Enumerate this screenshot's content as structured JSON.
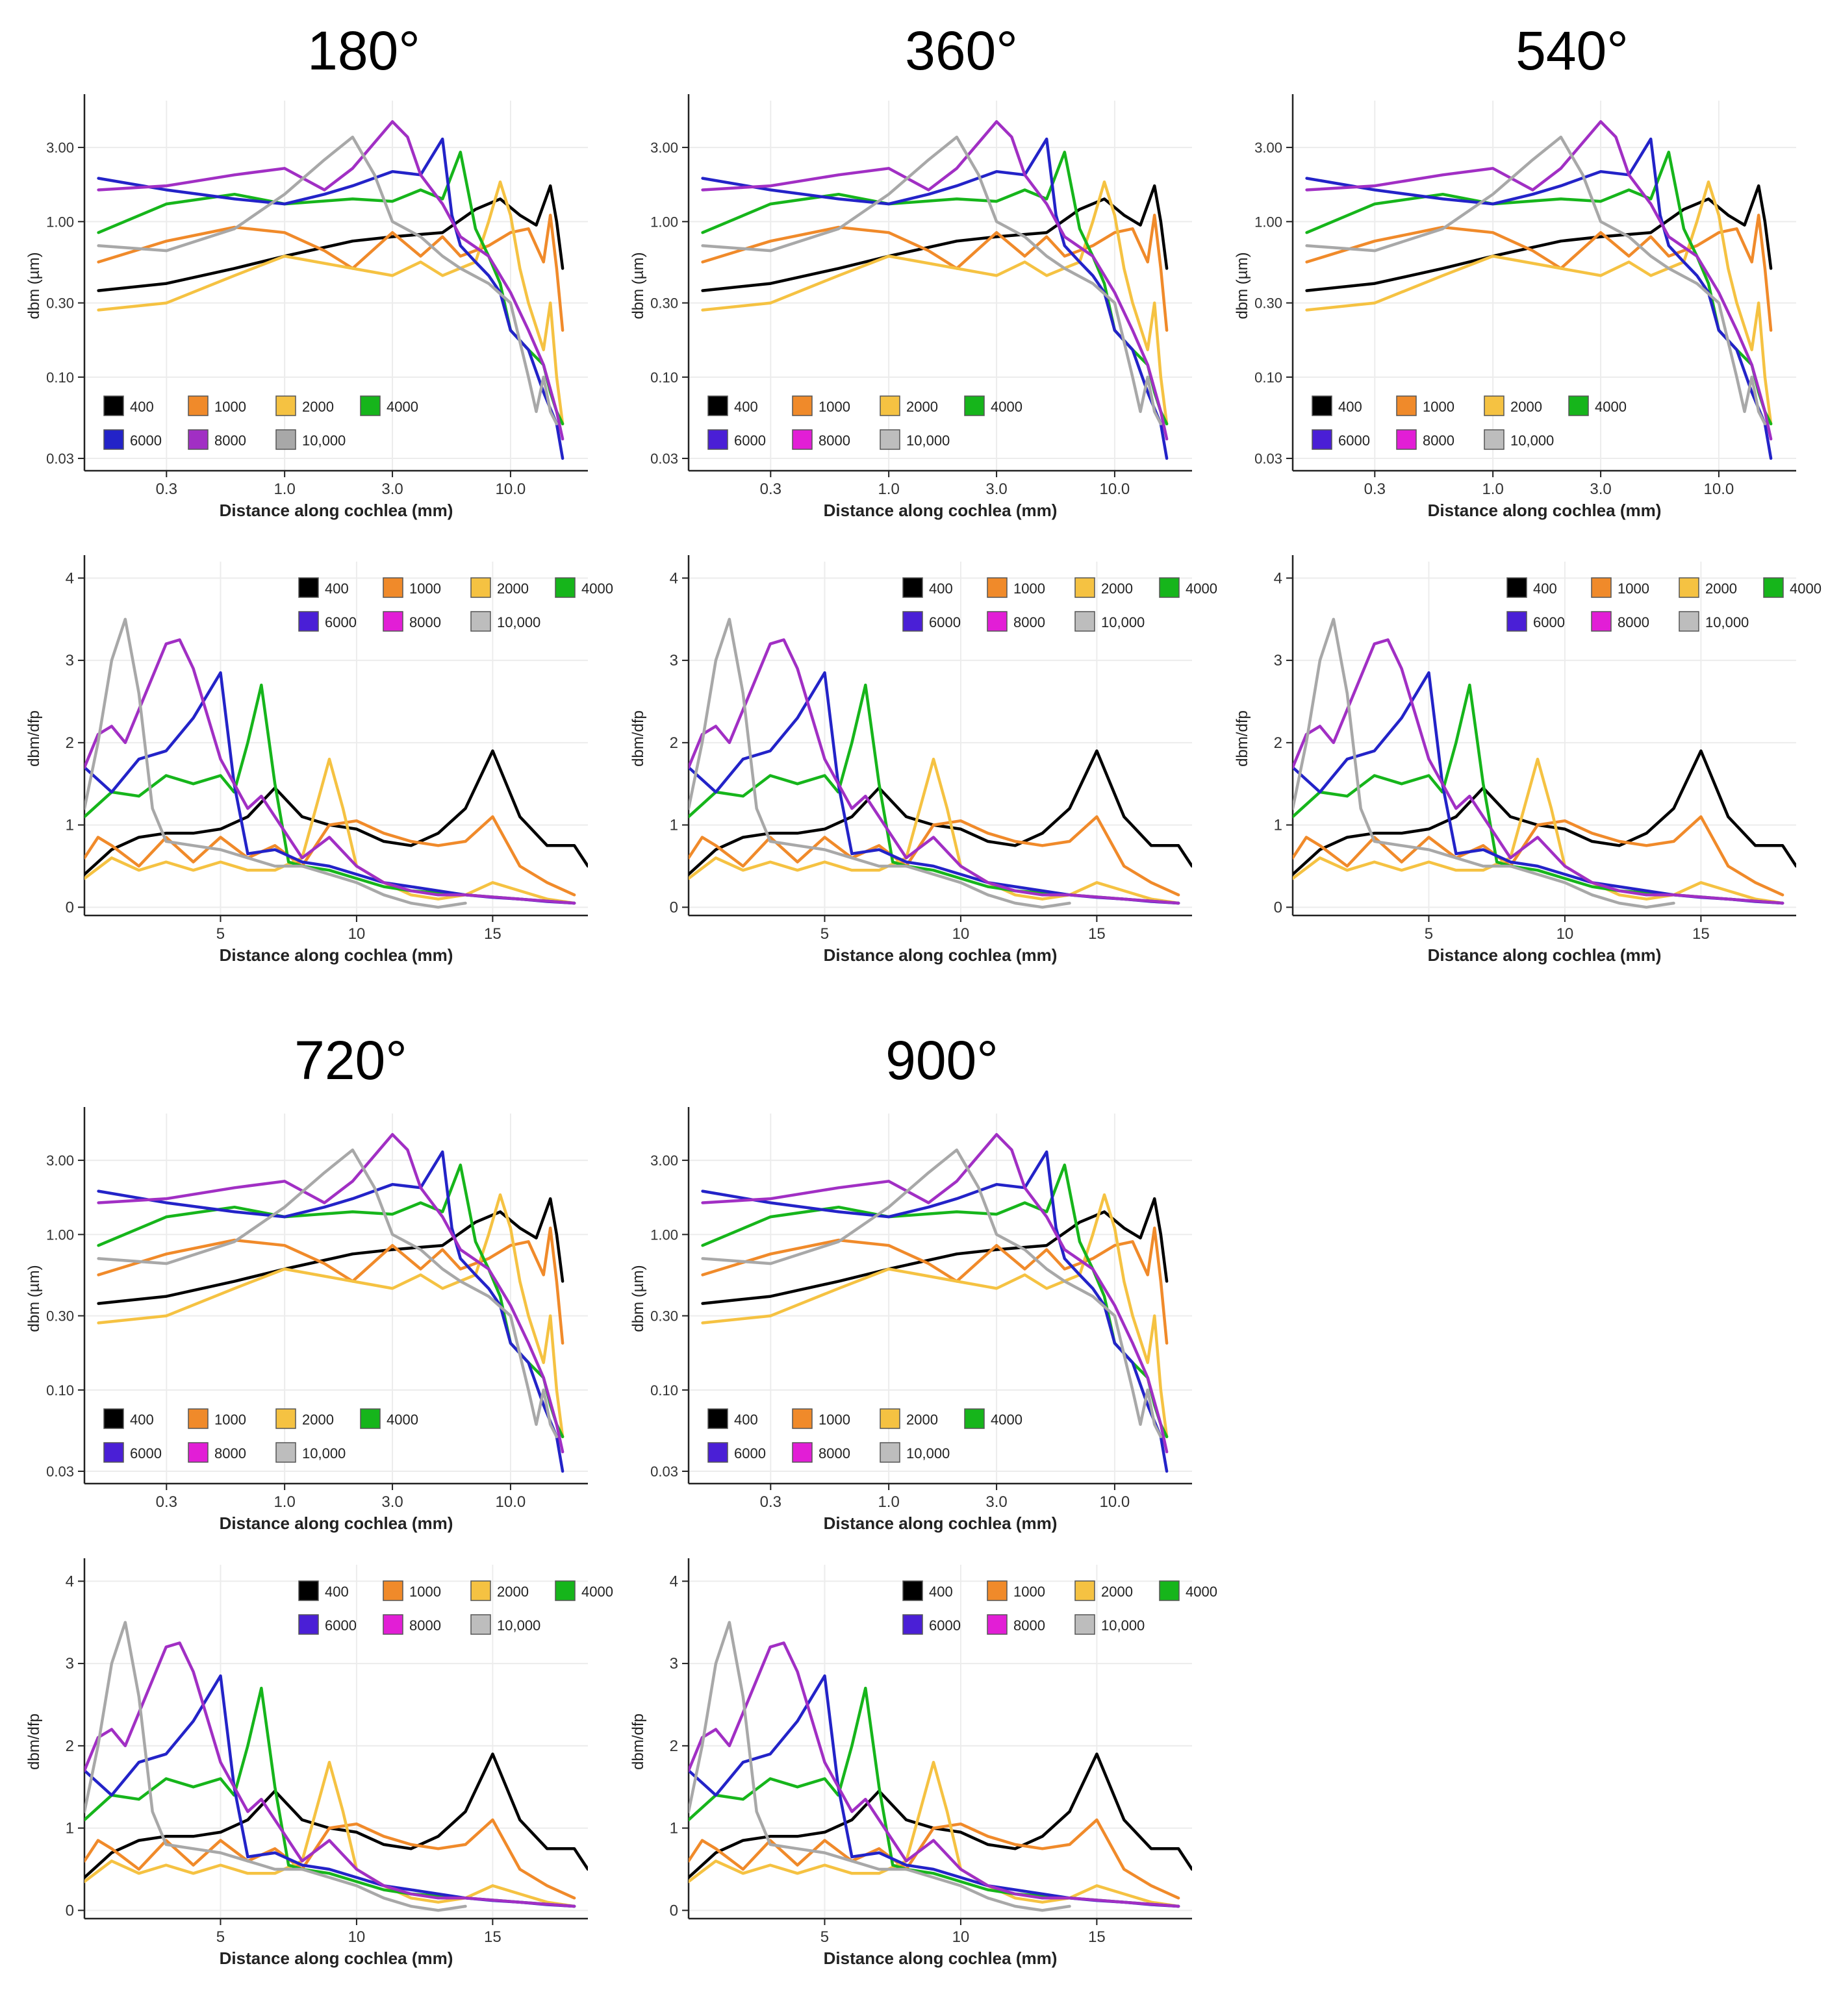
{
  "titles": [
    "180°",
    "360°",
    "540°",
    "720°",
    "900°"
  ],
  "series_colors": {
    "400": "#000000",
    "1000": "#f08a2a",
    "2000": "#f5c242",
    "4000": "#16b51b",
    "6000": "#2323c8",
    "8000": "#a12fc4",
    "10,000": "#a8a8a8"
  },
  "legend_colors_alt": {
    "400": "#000000",
    "1000": "#f08a2a",
    "2000": "#f5c242",
    "4000": "#16b51b",
    "6000": "#4a1fd6",
    "8000": "#e21ed6",
    "10,000": "#bdbdbd"
  },
  "chart_data": [
    {
      "type": "line",
      "panel": "180° upper",
      "title": "180°",
      "xlabel": "Distance along cochlea (mm)",
      "ylabel": "dbm (µm)",
      "xscale": "log",
      "yscale": "log",
      "xlim": [
        0.13,
        22
      ],
      "ylim": [
        0.025,
        6
      ],
      "xticks": [
        "0.3",
        "1.0",
        "3.0",
        "10.0"
      ],
      "xtick_values": [
        0.3,
        1.0,
        3.0,
        10.0
      ],
      "yticks": [
        "0.03",
        "0.10",
        "0.30",
        "1.00",
        "3.00"
      ],
      "ytick_values": [
        0.03,
        0.1,
        0.3,
        1.0,
        3.0
      ],
      "legend_position": "bottom-left",
      "legend": [
        "400",
        "1000",
        "2000",
        "4000",
        "6000",
        "8000",
        "10,000"
      ],
      "series": [
        {
          "name": "400",
          "x": [
            0.15,
            0.3,
            0.6,
            1.0,
            2.0,
            3.0,
            5.0,
            7.0,
            9.0,
            11.0,
            13.0,
            15.0,
            16.0,
            17.0
          ],
          "values": [
            0.36,
            0.4,
            0.5,
            0.6,
            0.75,
            0.8,
            0.85,
            1.2,
            1.4,
            1.1,
            0.95,
            1.7,
            1.0,
            0.5
          ]
        },
        {
          "name": "1000",
          "x": [
            0.15,
            0.3,
            0.6,
            1.0,
            1.5,
            2.0,
            3.0,
            4.0,
            5.0,
            6.0,
            8.0,
            10.0,
            12.0,
            14.0,
            15.0,
            16.0,
            17.0
          ],
          "values": [
            0.55,
            0.75,
            0.92,
            0.85,
            0.65,
            0.5,
            0.85,
            0.6,
            0.8,
            0.6,
            0.7,
            0.85,
            0.9,
            0.55,
            1.1,
            0.5,
            0.2
          ]
        },
        {
          "name": "2000",
          "x": [
            0.15,
            0.3,
            0.6,
            1.0,
            2.0,
            3.0,
            4.0,
            5.0,
            7.0,
            8.0,
            9.0,
            10.0,
            11.0,
            12.0,
            14.0,
            15.0,
            16.0,
            17.0
          ],
          "values": [
            0.27,
            0.3,
            0.45,
            0.6,
            0.5,
            0.45,
            0.55,
            0.45,
            0.55,
            1.0,
            1.8,
            1.1,
            0.5,
            0.3,
            0.15,
            0.3,
            0.1,
            0.05
          ]
        },
        {
          "name": "4000",
          "x": [
            0.15,
            0.3,
            0.6,
            1.0,
            2.0,
            3.0,
            4.0,
            5.0,
            6.0,
            7.0,
            8.0,
            9.0,
            10.0,
            12.0,
            14.0,
            15.0,
            16.0,
            17.0
          ],
          "values": [
            0.85,
            1.3,
            1.5,
            1.3,
            1.4,
            1.35,
            1.6,
            1.4,
            2.8,
            0.9,
            0.6,
            0.4,
            0.2,
            0.15,
            0.12,
            0.08,
            0.06,
            0.05
          ]
        },
        {
          "name": "6000",
          "x": [
            0.15,
            0.3,
            0.6,
            1.0,
            1.5,
            2.0,
            3.0,
            4.0,
            5.0,
            5.5,
            6.0,
            7.0,
            8.0,
            9.0,
            10.0,
            12.0,
            14.0,
            16.0,
            17.0
          ],
          "values": [
            1.9,
            1.6,
            1.4,
            1.3,
            1.5,
            1.7,
            2.1,
            2.0,
            3.4,
            1.1,
            0.7,
            0.55,
            0.45,
            0.35,
            0.2,
            0.15,
            0.08,
            0.05,
            0.03
          ]
        },
        {
          "name": "8000",
          "x": [
            0.15,
            0.3,
            0.6,
            1.0,
            1.5,
            2.0,
            3.0,
            3.5,
            4.0,
            5.0,
            6.0,
            8.0,
            10.0,
            12.0,
            14.0,
            16.0,
            17.0
          ],
          "values": [
            1.6,
            1.7,
            2.0,
            2.2,
            1.6,
            2.2,
            4.4,
            3.5,
            2.0,
            1.3,
            0.8,
            0.6,
            0.35,
            0.2,
            0.12,
            0.06,
            0.04
          ]
        },
        {
          "name": "10,000",
          "x": [
            0.15,
            0.3,
            0.6,
            1.0,
            1.5,
            2.0,
            2.5,
            3.0,
            4.0,
            5.0,
            6.0,
            8.0,
            10.0,
            12.0,
            13.0,
            14.0,
            15.0,
            16.0
          ],
          "values": [
            0.7,
            0.65,
            0.9,
            1.5,
            2.5,
            3.5,
            2.0,
            1.0,
            0.8,
            0.6,
            0.5,
            0.4,
            0.3,
            0.1,
            0.06,
            0.1,
            0.06,
            0.05
          ]
        }
      ]
    },
    {
      "type": "line",
      "panel": "180° lower",
      "xlabel": "Distance along cochlea (mm)",
      "ylabel": "dbm/dfp",
      "xscale": "linear",
      "yscale": "linear",
      "xlim": [
        0,
        18.5
      ],
      "ylim": [
        -0.1,
        4.2
      ],
      "xticks": [
        "5",
        "10",
        "15"
      ],
      "xtick_values": [
        5,
        10,
        15
      ],
      "yticks": [
        "0",
        "1",
        "2",
        "3",
        "4"
      ],
      "ytick_values": [
        0,
        1,
        2,
        3,
        4
      ],
      "legend_position": "top-right",
      "legend": [
        "400",
        "1000",
        "2000",
        "4000",
        "6000",
        "8000",
        "10,000"
      ],
      "series": [
        {
          "name": "400",
          "x": [
            0,
            1,
            2,
            3,
            4,
            5,
            6,
            7,
            8,
            9,
            10,
            11,
            12,
            13,
            14,
            15,
            16,
            17,
            18,
            18.5
          ],
          "values": [
            0.4,
            0.7,
            0.85,
            0.9,
            0.9,
            0.95,
            1.1,
            1.45,
            1.1,
            1.0,
            0.95,
            0.8,
            0.75,
            0.9,
            1.2,
            1.9,
            1.1,
            0.75,
            0.75,
            0.5
          ]
        },
        {
          "name": "1000",
          "x": [
            0,
            0.5,
            1,
            2,
            3,
            4,
            5,
            6,
            7,
            8,
            9,
            10,
            11,
            12,
            13,
            14,
            15,
            16,
            17,
            18
          ],
          "values": [
            0.6,
            0.85,
            0.75,
            0.5,
            0.85,
            0.55,
            0.85,
            0.6,
            0.75,
            0.5,
            1.0,
            1.05,
            0.9,
            0.8,
            0.75,
            0.8,
            1.1,
            0.5,
            0.3,
            0.15
          ]
        },
        {
          "name": "2000",
          "x": [
            0,
            1,
            2,
            3,
            4,
            5,
            6,
            7,
            8,
            8.5,
            9,
            9.5,
            10,
            11,
            12,
            13,
            14,
            15,
            16,
            17,
            18
          ],
          "values": [
            0.35,
            0.6,
            0.45,
            0.55,
            0.45,
            0.55,
            0.45,
            0.45,
            0.6,
            1.2,
            1.8,
            1.2,
            0.5,
            0.3,
            0.15,
            0.1,
            0.15,
            0.3,
            0.2,
            0.1,
            0.05
          ]
        },
        {
          "name": "4000",
          "x": [
            0,
            1,
            2,
            3,
            4,
            5,
            5.5,
            6,
            6.5,
            7,
            7.5,
            8,
            9,
            10,
            11,
            12,
            14,
            16,
            18
          ],
          "values": [
            1.1,
            1.4,
            1.35,
            1.6,
            1.5,
            1.6,
            1.4,
            2.0,
            2.7,
            1.5,
            0.55,
            0.5,
            0.45,
            0.35,
            0.25,
            0.2,
            0.15,
            0.1,
            0.05
          ]
        },
        {
          "name": "6000",
          "x": [
            0,
            1,
            2,
            3,
            4,
            5,
            5.5,
            6,
            7,
            8,
            9,
            10,
            11,
            12,
            13,
            14,
            15,
            16,
            17,
            18
          ],
          "values": [
            1.7,
            1.4,
            1.8,
            1.9,
            2.3,
            2.85,
            1.5,
            0.65,
            0.7,
            0.55,
            0.5,
            0.4,
            0.3,
            0.25,
            0.2,
            0.15,
            0.12,
            0.1,
            0.07,
            0.05
          ]
        },
        {
          "name": "8000",
          "x": [
            0,
            0.5,
            1,
            1.5,
            2,
            3,
            3.5,
            4,
            5,
            6,
            6.5,
            7,
            8,
            9,
            10,
            11,
            12,
            13,
            14,
            16,
            18
          ],
          "values": [
            1.7,
            2.1,
            2.2,
            2.0,
            2.4,
            3.2,
            3.25,
            2.9,
            1.8,
            1.2,
            1.35,
            1.1,
            0.6,
            0.85,
            0.5,
            0.3,
            0.2,
            0.15,
            0.15,
            0.1,
            0.05
          ]
        },
        {
          "name": "10,000",
          "x": [
            0,
            0.5,
            1,
            1.5,
            2,
            2.5,
            3,
            4,
            5,
            6,
            7,
            8,
            9,
            10,
            11,
            12,
            13,
            14
          ],
          "values": [
            1.2,
            2.0,
            3.0,
            3.5,
            2.6,
            1.2,
            0.8,
            0.75,
            0.7,
            0.6,
            0.5,
            0.5,
            0.4,
            0.3,
            0.15,
            0.05,
            0.0,
            0.05
          ]
        }
      ]
    },
    {
      "type": "line",
      "panel": "360° upper",
      "title": "360°",
      "same_as": "180° upper",
      "xlabel": "Distance along cochlea (mm)",
      "ylabel": "dbm (µm)",
      "legend": [
        "400",
        "1000",
        "2000",
        "4000",
        "6000",
        "8000",
        "10,000"
      ]
    },
    {
      "type": "line",
      "panel": "360° lower",
      "same_as": "180° lower",
      "xlabel": "Distance along cochlea (mm)",
      "ylabel": "dbm/dfp",
      "legend": [
        "400",
        "1000",
        "2000",
        "4000",
        "6000",
        "8000",
        "10,000"
      ]
    },
    {
      "type": "line",
      "panel": "540° upper",
      "title": "540°",
      "same_as": "180° upper",
      "xlabel": "Distance along cochlea (mm)",
      "ylabel": "dbm (µm)",
      "legend": [
        "400",
        "1000",
        "2000",
        "4000",
        "6000",
        "8000",
        "10,000"
      ]
    },
    {
      "type": "line",
      "panel": "540° lower",
      "same_as": "180° lower",
      "xlabel": "Distance along cochlea (mm)",
      "ylabel": "dbm/dfp",
      "legend": [
        "400",
        "1000",
        "2000",
        "4000",
        "6000",
        "8000",
        "10,000"
      ]
    },
    {
      "type": "line",
      "panel": "720° upper",
      "title": "720°",
      "same_as": "180° upper",
      "xlabel": "Distance along cochlea (mm)",
      "ylabel": "dbm (µm)",
      "xticks_override": [
        "0.3",
        "1.0",
        "3.0",
        "10.0"
      ],
      "legend": [
        "400",
        "1000",
        "2000",
        "4000",
        "6000",
        "8000",
        "10,000"
      ]
    },
    {
      "type": "line",
      "panel": "720° lower",
      "same_as": "180° lower",
      "xlabel": "Distance along cochlea (mm)",
      "ylabel": "dbm/dfp",
      "legend": [
        "400",
        "1000",
        "2000",
        "4000",
        "6000",
        "8000",
        "10,000"
      ]
    },
    {
      "type": "line",
      "panel": "900° upper",
      "title": "900°",
      "same_as": "180° upper",
      "xlabel": "Distance along cochlea (mm)",
      "ylabel": "dbm (µm)",
      "legend": [
        "400",
        "1000",
        "2000",
        "4000",
        "6000",
        "8000",
        "10,000"
      ]
    },
    {
      "type": "line",
      "panel": "900° lower",
      "same_as": "180° lower",
      "xlabel": "Distance along cochlea (mm)",
      "ylabel": "dbm/dfp",
      "legend": [
        "400",
        "1000",
        "2000",
        "4000",
        "6000",
        "8000",
        "10,000"
      ]
    }
  ]
}
